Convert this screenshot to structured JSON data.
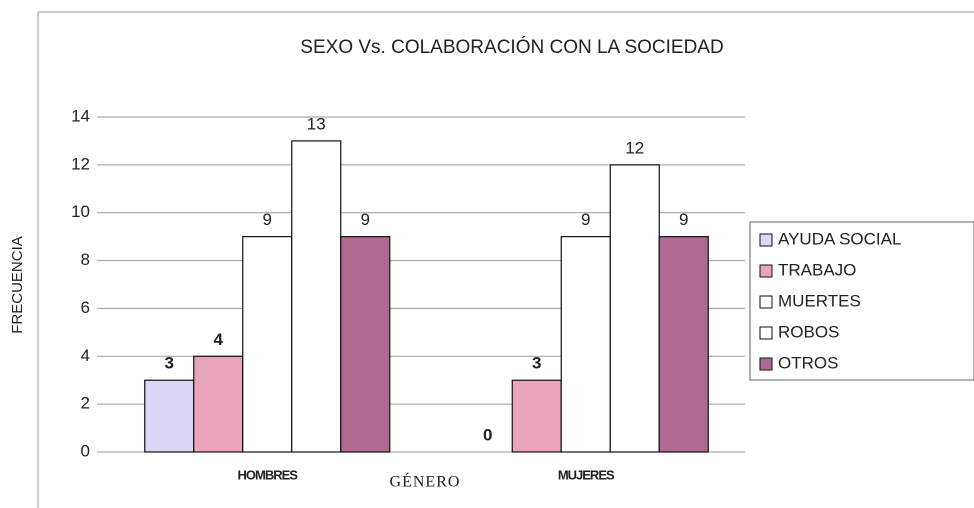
{
  "chart_data": {
    "type": "bar",
    "title": "SEXO Vs. COLABORACIÓN CON LA SOCIEDAD",
    "x_label": "GÉNERO",
    "y_label": "FRECUENCIA",
    "categories": [
      "HOMBRES",
      "MUJERES"
    ],
    "series": [
      {
        "name": "AYUDA SOCIAL",
        "color": "#d9d9f5",
        "values": [
          3,
          0
        ]
      },
      {
        "name": "TRABAJO",
        "color": "#e9a3ba",
        "values": [
          4,
          3
        ]
      },
      {
        "name": "MUERTES",
        "color": "#ffffff",
        "values": [
          9,
          9
        ]
      },
      {
        "name": "ROBOS",
        "color": "#ffffff",
        "values": [
          13,
          12
        ]
      },
      {
        "name": "OTROS",
        "color": "#b06a92",
        "values": [
          9,
          9
        ]
      }
    ],
    "ylim": [
      0,
      14
    ],
    "yticks": [
      0,
      2,
      4,
      6,
      8,
      10,
      12,
      14
    ],
    "grid": true,
    "legend": "right"
  }
}
